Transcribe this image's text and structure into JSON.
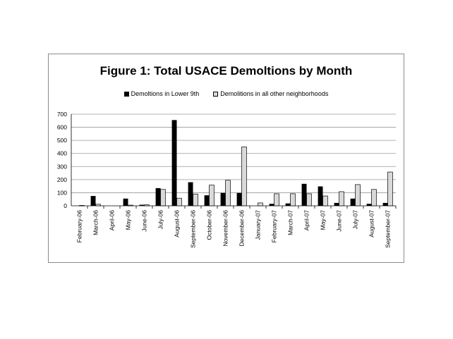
{
  "chart_data": {
    "type": "bar",
    "title": "Figure 1:  Total USACE Demoltions by Month",
    "xlabel": "",
    "ylabel": "",
    "ylim": [
      0,
      700
    ],
    "yticks": [
      0,
      100,
      200,
      300,
      400,
      500,
      600,
      700
    ],
    "grid": true,
    "legend_position": "top",
    "categories": [
      "February-06",
      "March-06",
      "April-06",
      "May-06",
      "June-06",
      "July-06",
      "August-06",
      "September-06",
      "October-06",
      "November-06",
      "December-06",
      "January-07",
      "February-07",
      "March-07",
      "April-07",
      "May-07",
      "June-07",
      "July-07",
      "August-07",
      "September-07"
    ],
    "series": [
      {
        "name": "Demoltions in Lower 9th",
        "color": "#000000",
        "values": [
          0,
          75,
          0,
          55,
          8,
          135,
          655,
          180,
          80,
          98,
          98,
          0,
          15,
          18,
          168,
          148,
          22,
          55,
          15,
          22
        ]
      },
      {
        "name": "Demolitions in all other neighborhoods",
        "color": "#d9d9d9",
        "values": [
          3,
          12,
          0,
          5,
          8,
          125,
          58,
          90,
          158,
          195,
          450,
          22,
          92,
          92,
          92,
          75,
          108,
          162,
          125,
          258
        ]
      }
    ]
  }
}
